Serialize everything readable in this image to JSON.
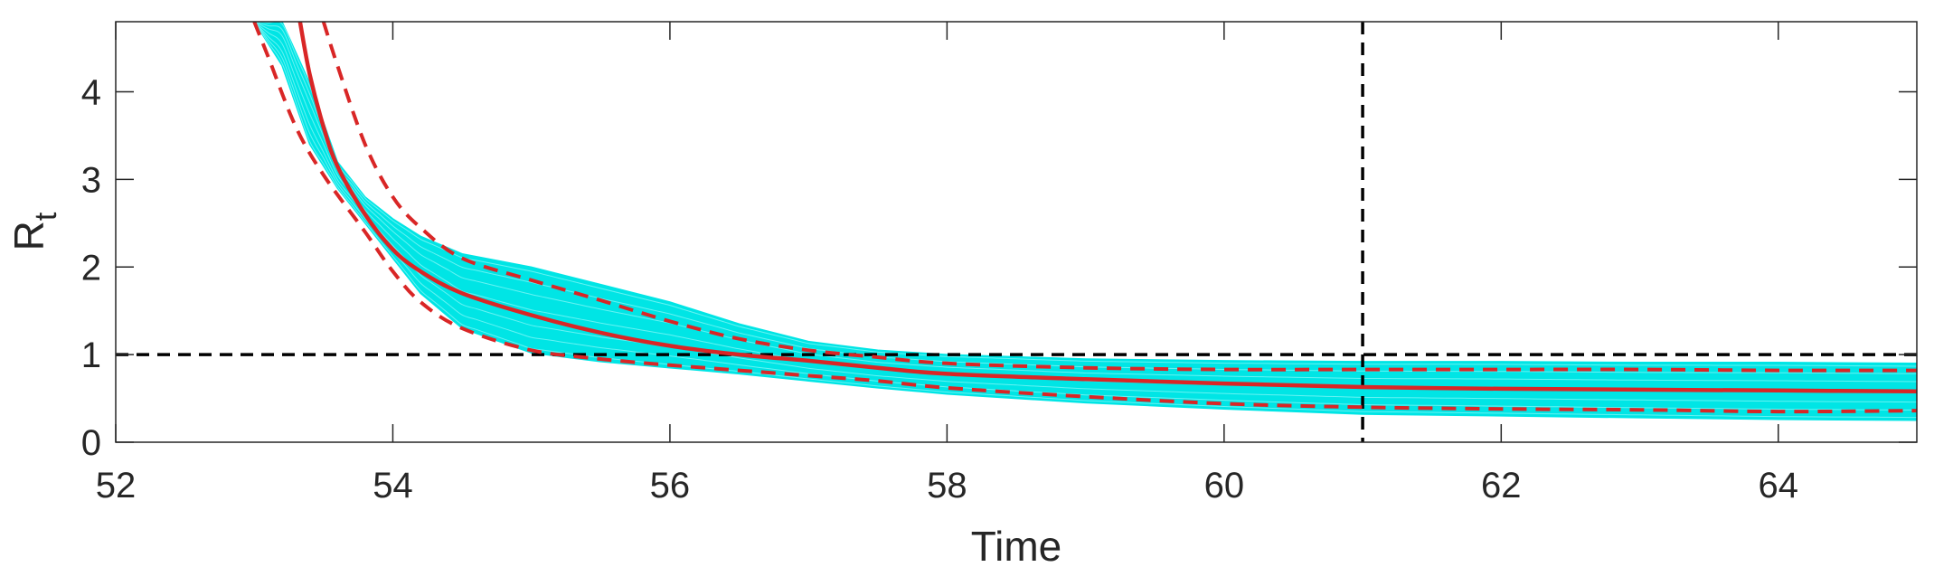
{
  "chart_data": {
    "type": "line",
    "title": "",
    "xlabel": "Time",
    "ylabel": "R",
    "ylabel_subscript": "t",
    "xlim": [
      52,
      65
    ],
    "ylim": [
      0,
      4.8
    ],
    "xticks": [
      52,
      54,
      56,
      58,
      60,
      62,
      64
    ],
    "yticks": [
      0,
      1,
      2,
      3,
      4
    ],
    "grid": false,
    "legend": "none",
    "colors": {
      "ensemble": "#00e5e5",
      "median": "#d92626",
      "reference": "#000000",
      "axis": "#262626"
    },
    "ensemble_band": {
      "x": [
        53.0,
        53.2,
        53.4,
        53.6,
        53.8,
        54.0,
        54.2,
        54.5,
        55.0,
        55.5,
        56.0,
        56.5,
        57.0,
        57.5,
        58.0,
        59.0,
        60.0,
        61.0,
        62.0,
        63.0,
        64.0,
        65.0
      ],
      "upper": [
        4.8,
        4.8,
        4.1,
        3.2,
        2.8,
        2.55,
        2.35,
        2.15,
        2.0,
        1.8,
        1.6,
        1.35,
        1.15,
        1.05,
        1.0,
        0.95,
        0.93,
        0.92,
        0.92,
        0.91,
        0.91,
        0.9
      ],
      "lower": [
        4.8,
        4.3,
        3.4,
        2.9,
        2.5,
        2.1,
        1.7,
        1.3,
        1.02,
        0.92,
        0.85,
        0.78,
        0.7,
        0.62,
        0.55,
        0.45,
        0.38,
        0.32,
        0.3,
        0.28,
        0.26,
        0.25
      ]
    },
    "series": [
      {
        "role": "median",
        "style": "solid",
        "x": [
          53.33,
          53.4,
          53.5,
          53.6,
          53.8,
          54.0,
          54.2,
          54.5,
          55.0,
          55.5,
          56.0,
          56.5,
          57.0,
          57.5,
          58.0,
          59.0,
          60.0,
          61.0,
          62.0,
          63.0,
          64.0,
          65.0
        ],
        "y": [
          4.8,
          4.2,
          3.6,
          3.15,
          2.6,
          2.2,
          1.95,
          1.7,
          1.45,
          1.25,
          1.1,
          1.0,
          0.93,
          0.85,
          0.78,
          0.72,
          0.67,
          0.63,
          0.61,
          0.6,
          0.59,
          0.58
        ]
      },
      {
        "role": "upper-quantile",
        "style": "dashed",
        "x": [
          53.5,
          53.6,
          53.8,
          54.0,
          54.2,
          54.5,
          55.0,
          55.5,
          56.0,
          56.5,
          57.0,
          57.5,
          58.0,
          59.0,
          60.0,
          61.0,
          62.0,
          63.0,
          64.0,
          65.0
        ],
        "y": [
          4.8,
          4.3,
          3.4,
          2.8,
          2.45,
          2.1,
          1.85,
          1.62,
          1.38,
          1.18,
          1.05,
          0.97,
          0.9,
          0.85,
          0.83,
          0.83,
          0.83,
          0.83,
          0.82,
          0.82
        ]
      },
      {
        "role": "lower-quantile",
        "style": "dashed",
        "x": [
          53.0,
          53.1,
          53.3,
          53.5,
          53.8,
          54.0,
          54.2,
          54.5,
          55.0,
          55.5,
          56.0,
          56.5,
          57.0,
          57.5,
          58.0,
          59.0,
          60.0,
          61.0,
          62.0,
          63.0,
          64.0,
          65.0
        ],
        "y": [
          4.8,
          4.4,
          3.6,
          3.05,
          2.4,
          1.95,
          1.6,
          1.3,
          1.05,
          0.95,
          0.88,
          0.82,
          0.76,
          0.7,
          0.62,
          0.52,
          0.44,
          0.4,
          0.38,
          0.37,
          0.35,
          0.36
        ]
      }
    ],
    "reference_lines": [
      {
        "orientation": "horizontal",
        "value": 1,
        "style": "dashed"
      },
      {
        "orientation": "vertical",
        "value": 61,
        "style": "dashed"
      }
    ]
  }
}
